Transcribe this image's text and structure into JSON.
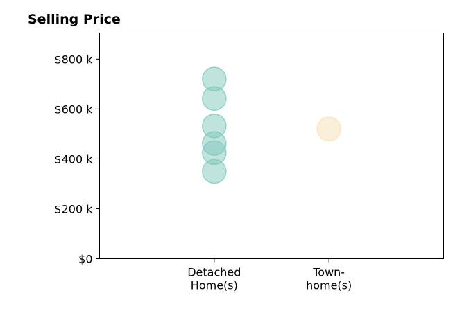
{
  "chart_data": {
    "type": "scatter",
    "title": "Selling Price",
    "xlabel": "",
    "ylabel": "",
    "categories": [
      [
        "Detached",
        "Home(s)"
      ],
      [
        "Town-",
        "home(s)"
      ]
    ],
    "series": [
      {
        "category_index": 0,
        "color": "#7fc8bc",
        "values": [
          720000,
          642000,
          532000,
          462000,
          425000,
          350000
        ]
      },
      {
        "category_index": 1,
        "color": "#f5e1b6",
        "values": [
          520000
        ]
      }
    ],
    "y_ticks": [
      {
        "value": 0,
        "label": "$0"
      },
      {
        "value": 200000,
        "label": "$200 k"
      },
      {
        "value": 400000,
        "label": "$400 k"
      },
      {
        "value": 600000,
        "label": "$600 k"
      },
      {
        "value": 800000,
        "label": "$800 k"
      }
    ],
    "ylim": [
      0,
      905000
    ],
    "xlim": [
      0,
      3
    ],
    "grid": false,
    "legend": "none"
  }
}
